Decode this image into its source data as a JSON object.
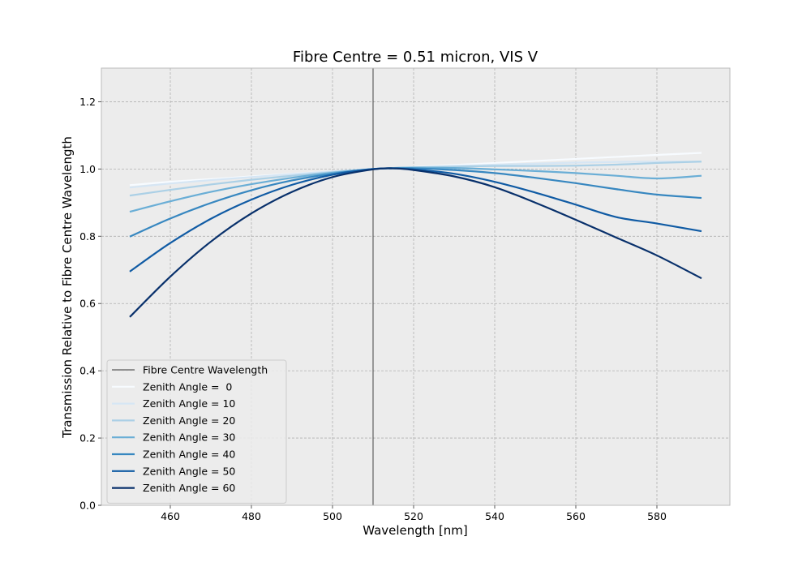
{
  "chart_data": {
    "type": "line",
    "title": "Fibre Centre = 0.51 micron, VIS V",
    "xlabel": "Wavelength [nm]",
    "ylabel": "Transmission Relative to Fibre Centre Wavelength",
    "xlim": [
      443,
      598
    ],
    "ylim": [
      0.0,
      1.3
    ],
    "xticks": [
      460,
      480,
      500,
      520,
      540,
      560,
      580
    ],
    "yticks": [
      0.0,
      0.2,
      0.4,
      0.6,
      0.8,
      1.0,
      1.2
    ],
    "xtick_labels": [
      "460",
      "480",
      "500",
      "520",
      "540",
      "560",
      "580"
    ],
    "ytick_labels": [
      "0.0",
      "0.2",
      "0.4",
      "0.6",
      "0.8",
      "1.0",
      "1.2"
    ],
    "grid": true,
    "legend": "lower-left",
    "vline": {
      "name": "Fibre Centre Wavelength",
      "x": 510,
      "color": "#333333"
    },
    "x": [
      450,
      460,
      470,
      480,
      490,
      500,
      510,
      515,
      520,
      530,
      540,
      550,
      560,
      570,
      580,
      591
    ],
    "series": [
      {
        "name": "Zenith Angle =  0",
        "color": "#f7fbff",
        "values": [
          0.952,
          0.962,
          0.97,
          0.978,
          0.986,
          0.993,
          1.0,
          1.003,
          1.006,
          1.012,
          1.018,
          1.024,
          1.03,
          1.036,
          1.042,
          1.048
        ]
      },
      {
        "name": "Zenith Angle = 10",
        "color": "#d6e6f4",
        "values": [
          0.945,
          0.957,
          0.967,
          0.976,
          0.985,
          0.993,
          1.0,
          1.003,
          1.005,
          1.009,
          1.013,
          1.016,
          1.019,
          1.021,
          1.022,
          1.022
        ]
      },
      {
        "name": "Zenith Angle = 20",
        "color": "#abd0e6",
        "values": [
          0.921,
          0.938,
          0.954,
          0.968,
          0.98,
          0.991,
          1.0,
          1.003,
          1.005,
          1.007,
          1.009,
          1.009,
          1.01,
          1.013,
          1.018,
          1.022
        ]
      },
      {
        "name": "Zenith Angle = 30",
        "color": "#6aaed6",
        "values": [
          0.873,
          0.904,
          0.932,
          0.955,
          0.974,
          0.989,
          1.0,
          1.003,
          1.004,
          1.003,
          0.999,
          0.994,
          0.988,
          0.98,
          0.972,
          0.98
        ]
      },
      {
        "name": "Zenith Angle = 40",
        "color": "#3787c0",
        "values": [
          0.799,
          0.853,
          0.899,
          0.937,
          0.966,
          0.986,
          1.0,
          1.002,
          1.002,
          0.997,
          0.988,
          0.974,
          0.958,
          0.94,
          0.924,
          0.914
        ]
      },
      {
        "name": "Zenith Angle = 50",
        "color": "#105ba4",
        "values": [
          0.695,
          0.78,
          0.852,
          0.909,
          0.953,
          0.983,
          1.0,
          1.002,
          0.999,
          0.986,
          0.962,
          0.93,
          0.894,
          0.857,
          0.838,
          0.815
        ]
      },
      {
        "name": "Zenith Angle = 60",
        "color": "#08306b",
        "values": [
          0.56,
          0.68,
          0.784,
          0.868,
          0.932,
          0.976,
          0.999,
          1.002,
          0.997,
          0.978,
          0.946,
          0.9,
          0.849,
          0.796,
          0.743,
          0.675
        ]
      }
    ]
  }
}
